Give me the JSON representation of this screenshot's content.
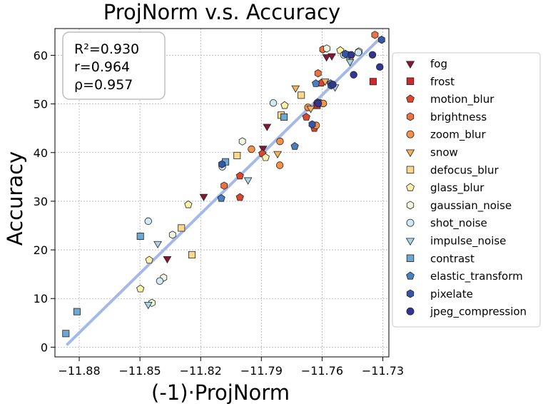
{
  "chart_data": {
    "type": "scatter",
    "title": "ProjNorm  v.s.  Accuracy",
    "xlabel": "(-1)·ProjNorm",
    "ylabel": "Accuracy",
    "xlim": [
      -11.892,
      -11.727
    ],
    "ylim": [
      -2,
      65.5
    ],
    "xticks": [
      -11.88,
      -11.85,
      -11.82,
      -11.79,
      -11.76,
      -11.73
    ],
    "xtick_labels": [
      "−11.88",
      "−11.85",
      "−11.82",
      "−11.79",
      "−11.76",
      "−11.73"
    ],
    "yticks": [
      0,
      10,
      20,
      30,
      40,
      50,
      60
    ],
    "ytick_labels": [
      "0",
      "10",
      "20",
      "30",
      "40",
      "50",
      "60"
    ],
    "grid": true,
    "legend_position": "right-outside",
    "stats": [
      "R²=0.930",
      "r=0.964",
      "ρ=0.957"
    ],
    "fit_line": {
      "color": "#a4b9ea",
      "x": [
        -11.8858,
        -11.7311
      ],
      "y": [
        0.6,
        63.6
      ]
    },
    "series": [
      {
        "name": "fog",
        "marker": "triangle-down",
        "color": "#8b1535",
        "points": [
          [
            -11.8365,
            18.2
          ],
          [
            -11.8185,
            31.0
          ],
          [
            -11.7872,
            45.4
          ],
          [
            -11.7892,
            40.9
          ],
          [
            -11.7578,
            59.7
          ],
          [
            -11.7552,
            59.9
          ]
        ]
      },
      {
        "name": "frost",
        "marker": "square",
        "color": "#cf2a2a",
        "points": [
          [
            -11.7625,
            49.7
          ],
          [
            -11.7348,
            54.6
          ]
        ]
      },
      {
        "name": "motion_blur",
        "marker": "pentagon",
        "color": "#e0462d",
        "points": [
          [
            -11.8006,
            30.8
          ],
          [
            -11.8006,
            35.2
          ],
          [
            -11.7895,
            39.8
          ],
          [
            -11.7678,
            47.3
          ],
          [
            -11.7638,
            45.0
          ],
          [
            -11.7604,
            54.3
          ]
        ]
      },
      {
        "name": "brightness",
        "marker": "hexagon",
        "color": "#ee7240",
        "points": [
          [
            -11.8084,
            33.2
          ],
          [
            -11.7608,
            50.2
          ],
          [
            -11.762,
            56.3
          ],
          [
            -11.7596,
            61.2
          ],
          [
            -11.7339,
            64.2
          ]
        ]
      },
      {
        "name": "zoom_blur",
        "marker": "circle",
        "color": "#f4924c",
        "points": [
          [
            -11.7949,
            40.7
          ],
          [
            -11.7808,
            42.3
          ],
          [
            -11.7809,
            37.4
          ],
          [
            -11.767,
            49.3
          ],
          [
            -11.7629,
            45.6
          ],
          [
            -11.7594,
            50.1
          ]
        ]
      },
      {
        "name": "snow",
        "marker": "triangle-down",
        "color": "#f7b15d",
        "points": [
          [
            -11.782,
            39.8
          ],
          [
            -11.7731,
            53.3
          ],
          [
            -11.7585,
            54.7
          ],
          [
            -11.7457,
            59.5
          ],
          [
            -11.7656,
            49.1
          ]
        ]
      },
      {
        "name": "defocus_blur",
        "marker": "square",
        "color": "#fbd88b",
        "points": [
          [
            -11.8243,
            19.0
          ],
          [
            -11.8295,
            24.5
          ],
          [
            -11.802,
            39.4
          ],
          [
            -11.7802,
            47.7
          ],
          [
            -11.7703,
            51.8
          ]
        ]
      },
      {
        "name": "glass_blur",
        "marker": "pentagon",
        "color": "#fcf2aa",
        "points": [
          [
            -11.8498,
            12.0
          ],
          [
            -11.8454,
            17.9
          ],
          [
            -11.8261,
            29.3
          ],
          [
            -11.7785,
            49.7
          ],
          [
            -11.7879,
            39.0
          ],
          [
            -11.751,
            61.0
          ]
        ]
      },
      {
        "name": "gaussian_noise",
        "marker": "hexagon",
        "color": "#eef6e0",
        "points": [
          [
            -11.8441,
            9.1
          ],
          [
            -11.8383,
            14.3
          ],
          [
            -11.8339,
            23.1
          ],
          [
            -11.7994,
            42.3
          ],
          [
            -11.7577,
            61.4
          ],
          [
            -11.7418,
            60.8
          ]
        ]
      },
      {
        "name": "shot_noise",
        "marker": "circle",
        "color": "#cfeaf0",
        "points": [
          [
            -11.8459,
            25.9
          ],
          [
            -11.8402,
            13.6
          ],
          [
            -11.8093,
            37.1
          ],
          [
            -11.7841,
            50.2
          ],
          [
            -11.7421,
            60.6
          ],
          [
            -11.7493,
            60.1
          ]
        ]
      },
      {
        "name": "impulse_noise",
        "marker": "triangle-down",
        "color": "#a8d5e6",
        "points": [
          [
            -11.8459,
            8.8
          ],
          [
            -11.8412,
            21.3
          ],
          [
            -11.7966,
            34.4
          ],
          [
            -11.7536,
            53.5
          ],
          [
            -11.7462,
            58.7
          ]
        ]
      },
      {
        "name": "contrast",
        "marker": "square",
        "color": "#6ea7cf",
        "points": [
          [
            -11.8866,
            2.8
          ],
          [
            -11.8811,
            7.3
          ],
          [
            -11.8498,
            22.8
          ],
          [
            -11.8077,
            38.1
          ],
          [
            -11.7788,
            47.3
          ]
        ]
      },
      {
        "name": "elastic_transform",
        "marker": "pentagon",
        "color": "#4881c0",
        "points": [
          [
            -11.8098,
            30.6
          ],
          [
            -11.7735,
            41.3
          ],
          [
            -11.7631,
            54.2
          ],
          [
            -11.7558,
            54.2
          ],
          [
            -11.7469,
            60.0
          ]
        ]
      },
      {
        "name": "pixelate",
        "marker": "hexagon",
        "color": "#3656a8",
        "points": [
          [
            -11.8095,
            37.6
          ],
          [
            -11.7649,
            45.8
          ],
          [
            -11.7622,
            50.3
          ],
          [
            -11.7555,
            53.8
          ],
          [
            -11.7485,
            60.3
          ],
          [
            -11.7306,
            63.2
          ]
        ]
      },
      {
        "name": "jpeg_compression",
        "marker": "circle",
        "color": "#313695",
        "points": [
          [
            -11.7619,
            50.1
          ],
          [
            -11.7456,
            60.1
          ],
          [
            -11.7444,
            56.0
          ],
          [
            -11.7351,
            60.1
          ],
          [
            -11.7315,
            57.6
          ],
          [
            -11.7547,
            54.0
          ]
        ]
      }
    ]
  }
}
